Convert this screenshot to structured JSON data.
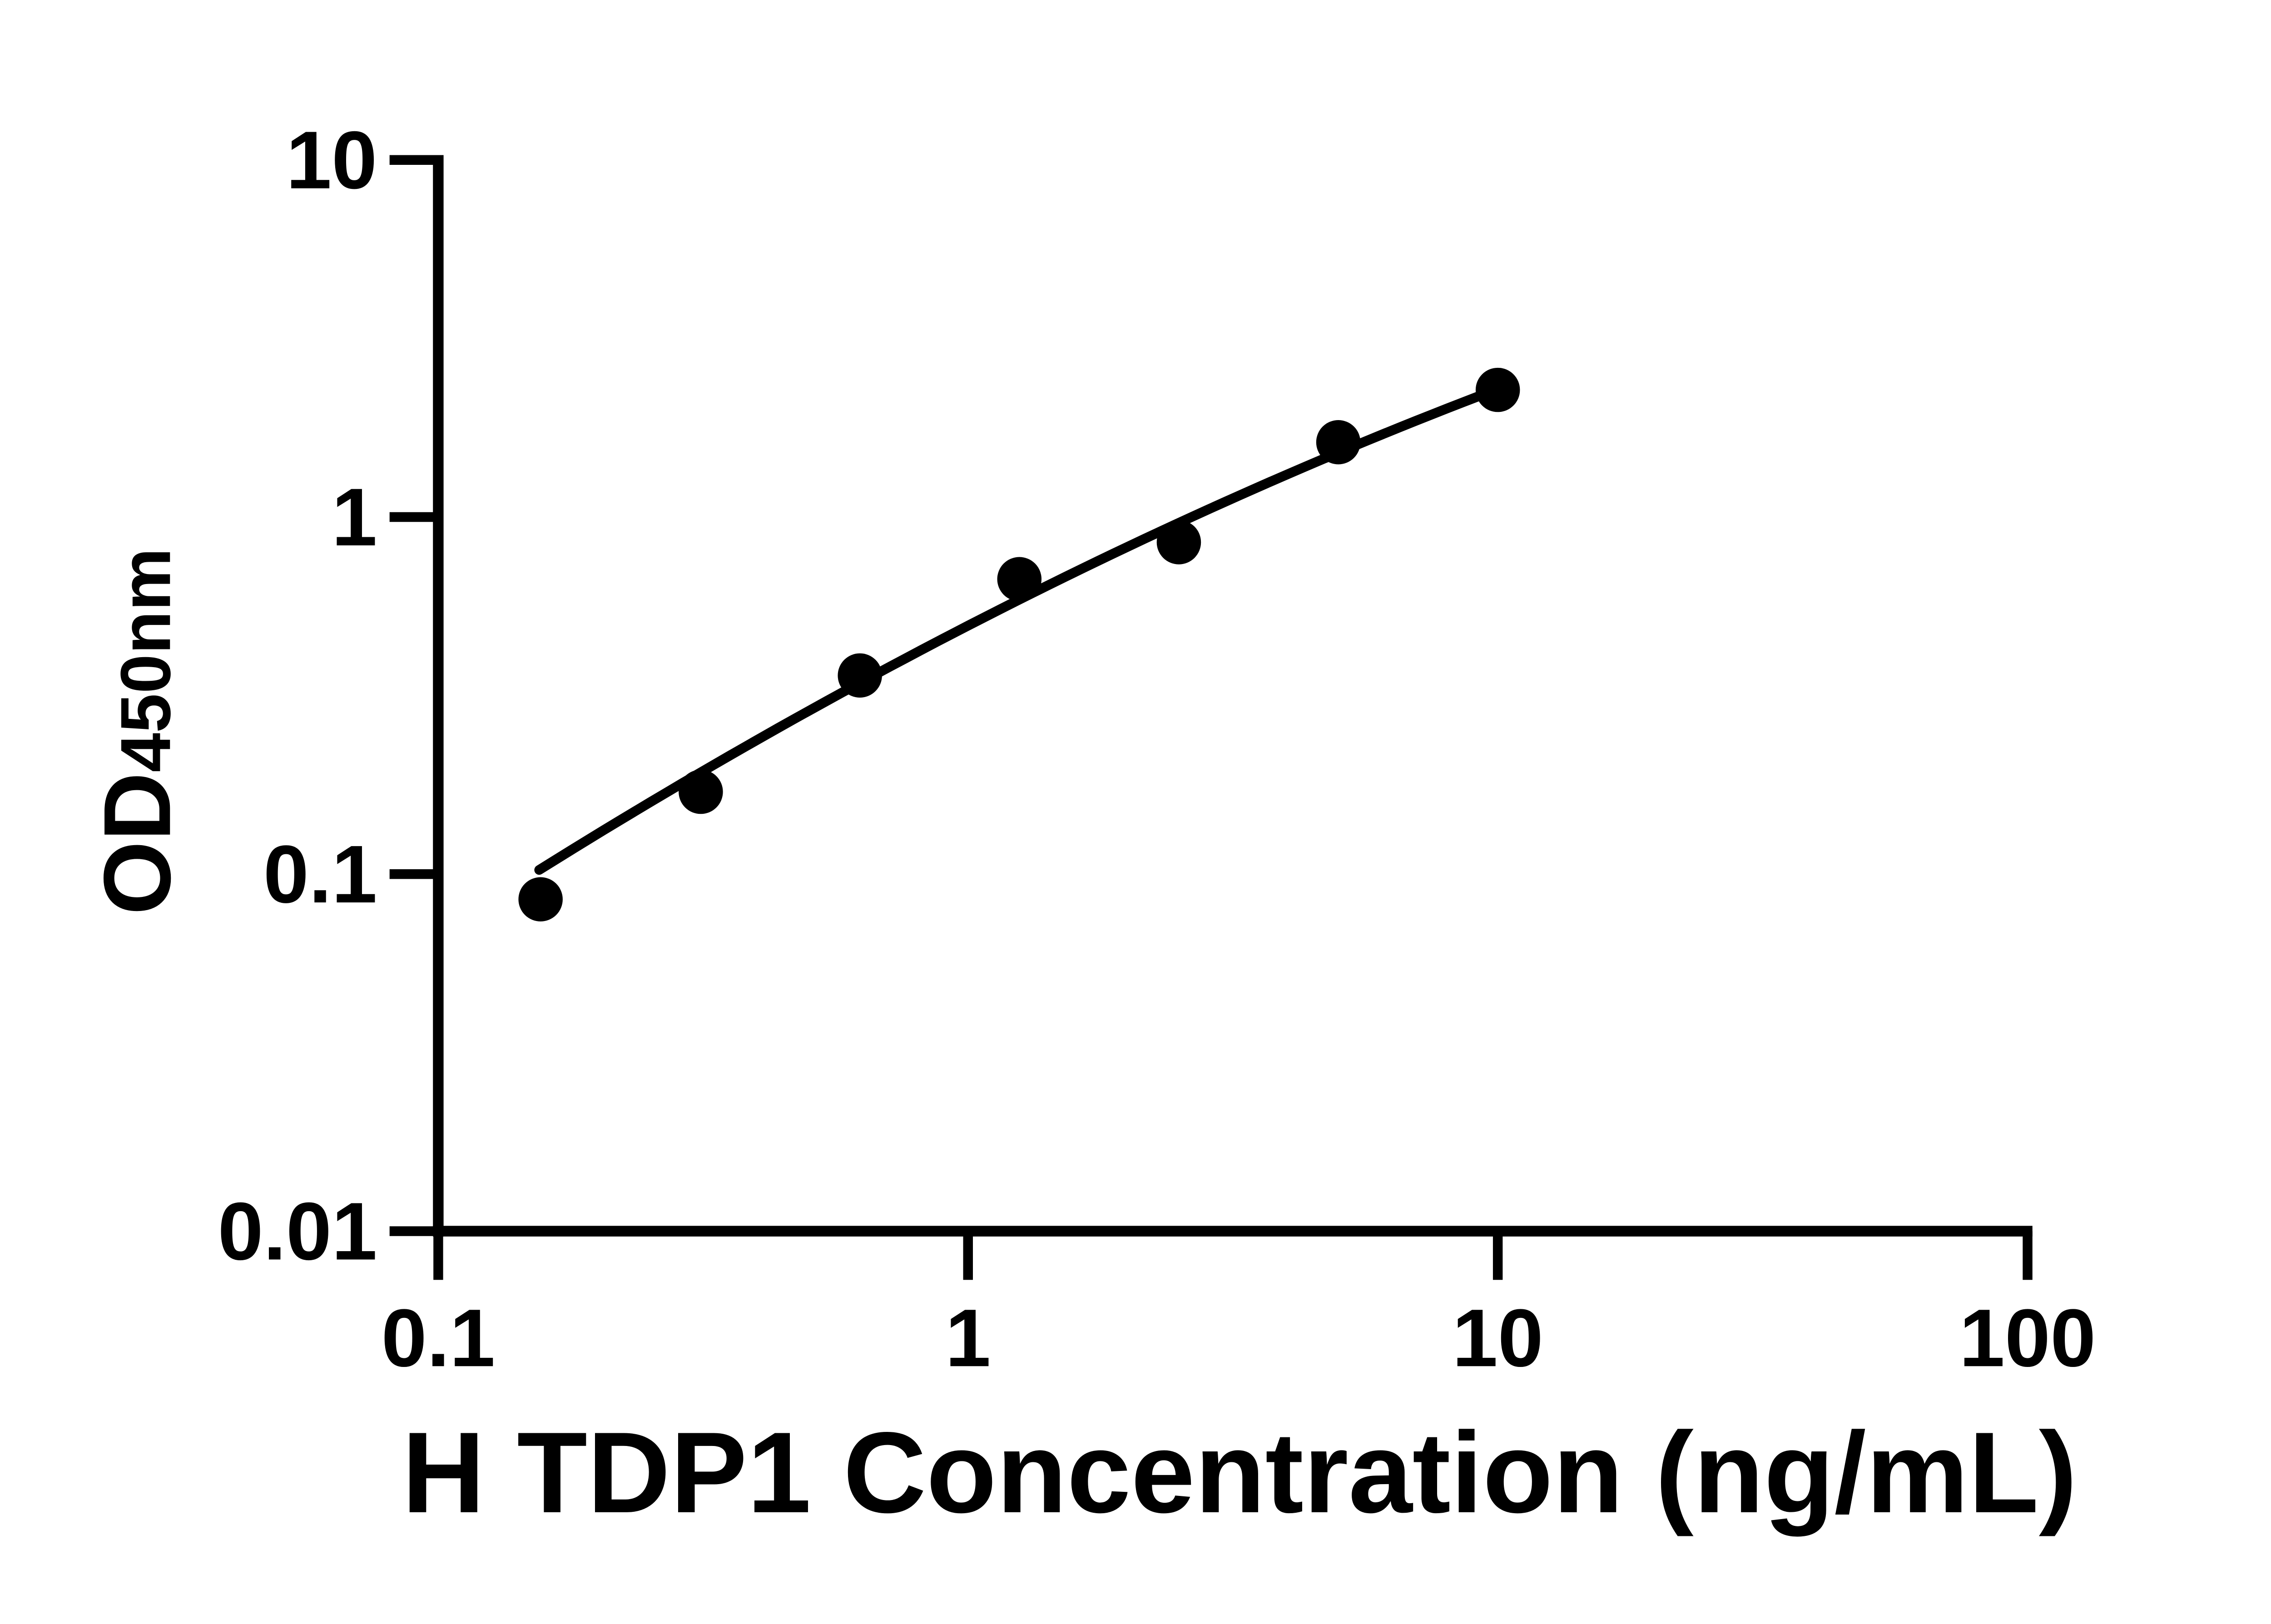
{
  "figure": {
    "background_color": "#ffffff",
    "foreground_color": "#000000"
  },
  "chart_data": {
    "type": "scatter",
    "title": "",
    "xlabel": "H TDP1 Concentration (ng/mL)",
    "ylabel_main": "OD",
    "ylabel_sub": "450nm",
    "x_scale": "log",
    "y_scale": "log",
    "xlim": [
      0.1,
      100
    ],
    "ylim": [
      0.01,
      10
    ],
    "x_ticks": [
      0.1,
      1,
      10,
      100
    ],
    "x_tick_labels": [
      "0.1",
      "1",
      "10",
      "100"
    ],
    "y_ticks": [
      10,
      1,
      0.1,
      0.01
    ],
    "y_tick_labels": [
      "10",
      "1",
      "0.1",
      "0.01"
    ],
    "grid": false,
    "legend": null,
    "marker": {
      "shape": "circle",
      "color": "#000000"
    },
    "line_color": "#000000",
    "points": [
      {
        "x": 0.156,
        "y": 0.085
      },
      {
        "x": 0.313,
        "y": 0.17
      },
      {
        "x": 0.625,
        "y": 0.36
      },
      {
        "x": 1.25,
        "y": 0.67
      },
      {
        "x": 2.5,
        "y": 0.85
      },
      {
        "x": 5,
        "y": 1.62
      },
      {
        "x": 10,
        "y": 2.27
      }
    ],
    "fit_curve": {
      "model": "quadratic_log10log10",
      "coeffs": [
        -0.3043,
        0.7636,
        -0.1005
      ],
      "log10x_range": [
        -0.8095,
        0.995
      ]
    }
  }
}
